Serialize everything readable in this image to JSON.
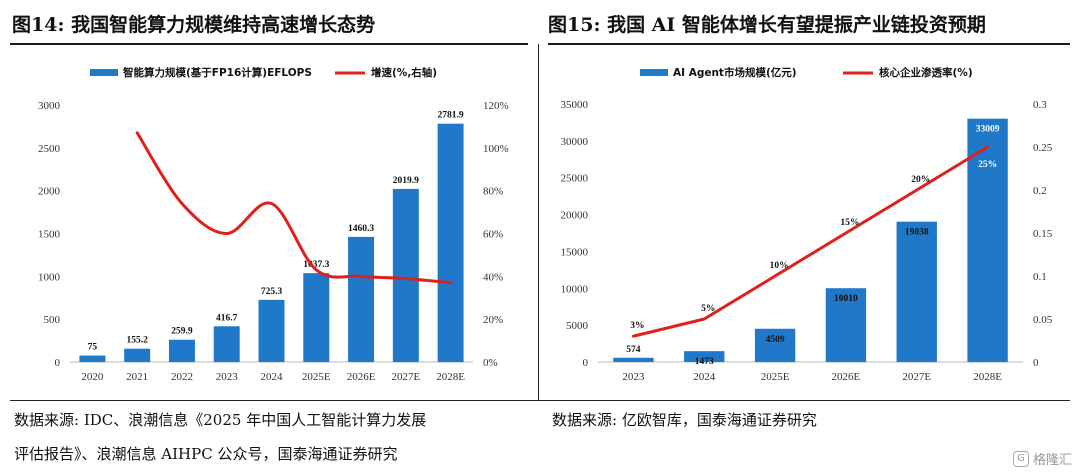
{
  "left": {
    "title": "图14: 我国智能算力规模维持高速增长态势",
    "source_line1": "数据来源: IDC、浪潮信息《2025 年中国人工智能计算力发展",
    "source_line2": "评估报告》、浪潮信息 AIHPC 公众号，国泰海通证券研究"
  },
  "right": {
    "title": "图15: 我国 AI 智能体增长有望提振产业链投资预期",
    "source": "数据来源: 亿欧智库，国泰海通证券研究"
  },
  "watermark": {
    "icon_glyph": "G",
    "text": "格隆汇"
  },
  "colors": {
    "bar": "#1f78c8",
    "line": "#e0201c"
  },
  "chart_data": [
    {
      "type": "bar",
      "categories": [
        "2020",
        "2021",
        "2022",
        "2023",
        "2024",
        "2025E",
        "2026E",
        "2027E",
        "2028E"
      ],
      "series": [
        {
          "name": "智能算力规模(基于FP16计算)EFLOPS",
          "type": "bar",
          "axis": "left",
          "values": [
            75,
            155.2,
            259.9,
            416.7,
            725.3,
            1037.3,
            1460.3,
            2019.9,
            2781.9
          ],
          "labels": [
            "75",
            "155.2",
            "259.9",
            "416.7",
            "725.3",
            "1037.3",
            "1460.3",
            "2019.9",
            "2781.9"
          ]
        },
        {
          "name": "增速(%,右轴)",
          "type": "line",
          "axis": "right",
          "values": [
            null,
            107,
            74,
            60,
            74,
            43,
            40,
            39,
            37
          ]
        }
      ],
      "y_left": {
        "range": [
          0,
          3000
        ],
        "ticks": [
          "0",
          "500",
          "1000",
          "1500",
          "2000",
          "2500",
          "3000"
        ]
      },
      "y_right": {
        "range": [
          0,
          120
        ],
        "ticks": [
          "0%",
          "20%",
          "40%",
          "60%",
          "80%",
          "100%",
          "120%"
        ]
      },
      "legend": "top-center",
      "grid": false
    },
    {
      "type": "bar",
      "categories": [
        "2023",
        "2024",
        "2025E",
        "2026E",
        "2027E",
        "2028E"
      ],
      "series": [
        {
          "name": "AI Agent市场规模(亿元)",
          "type": "bar",
          "axis": "left",
          "values": [
            574,
            1473,
            4509,
            10010,
            19038,
            33009
          ],
          "labels": [
            "574",
            "1473",
            "4509",
            "10010",
            "19038",
            "33009"
          ]
        },
        {
          "name": "核心企业渗透率(%)",
          "type": "line",
          "axis": "right",
          "values": [
            0.03,
            0.05,
            0.1,
            0.15,
            0.2,
            0.25
          ],
          "labels": [
            "3%",
            "5%",
            "10%",
            "15%",
            "20%",
            "25%"
          ]
        }
      ],
      "y_left": {
        "range": [
          0,
          35000
        ],
        "ticks": [
          "0",
          "5000",
          "10000",
          "15000",
          "20000",
          "25000",
          "30000",
          "35000"
        ]
      },
      "y_right": {
        "range": [
          0,
          0.3
        ],
        "ticks": [
          "0",
          "0.05",
          "0.1",
          "0.15",
          "0.2",
          "0.25",
          "0.3"
        ]
      },
      "legend": "top-center",
      "grid": false
    }
  ]
}
